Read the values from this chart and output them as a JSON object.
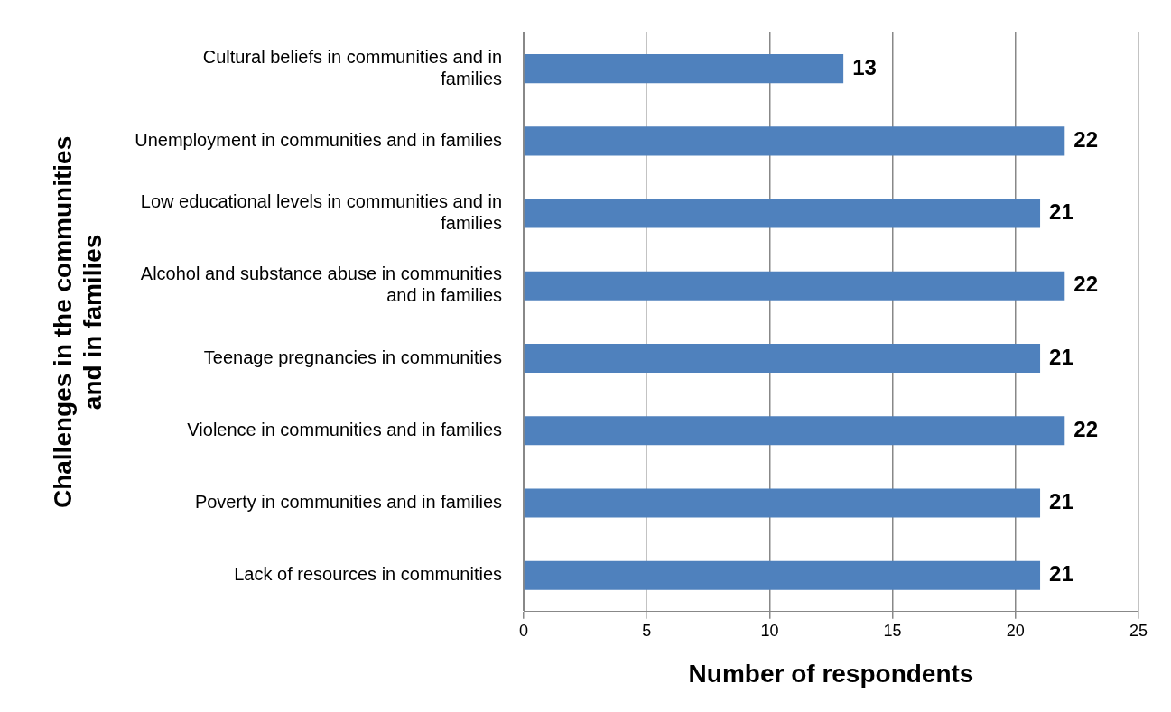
{
  "chart_data": {
    "type": "bar",
    "orientation": "horizontal",
    "xlabel": "Number of respondents",
    "ylabel": "Challenges in the communities and in families",
    "categories": [
      "Cultural beliefs in communities and in families",
      "Unemployment in communities and in families",
      "Low educational levels in communities and in families",
      "Alcohol and substance abuse in communities and in families",
      "Teenage pregnancies in communities",
      "Violence in communities and in families",
      "Poverty in communities and in families",
      "Lack of resources in communities"
    ],
    "values": [
      13,
      22,
      21,
      22,
      21,
      22,
      21,
      21
    ],
    "color": "#4f81bd",
    "xlim": [
      0,
      25
    ],
    "xticks": [
      0,
      5,
      10,
      15,
      20,
      25
    ],
    "grid": "x",
    "legend": false,
    "data_labels": true
  }
}
